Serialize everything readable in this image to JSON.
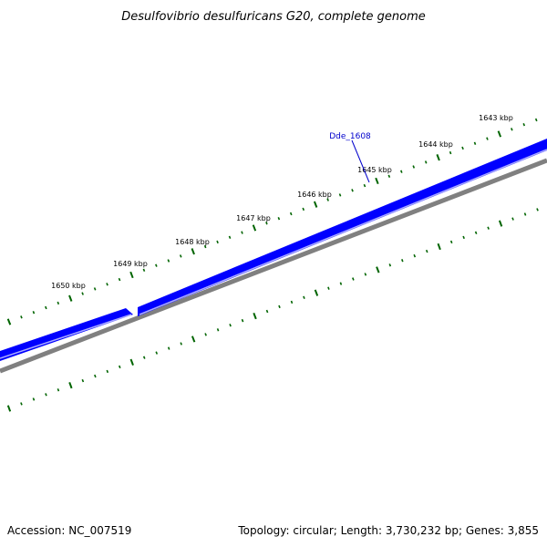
{
  "title": "Desulfovibrio desulfuricans G20, complete genome",
  "footer": {
    "accession": "Accession: NC_007519",
    "summary": "Topology: circular; Length: 3,730,232 bp; Genes: 3,855"
  },
  "colors": {
    "gene_fill": "#0000ff",
    "gene_highlight": "#aaaaff",
    "backbone": "#808080",
    "ticks": "#006400",
    "gene_label": "#0000cc"
  },
  "ruler": {
    "labels": [
      "1643 kbp",
      "1644 kbp",
      "1645 kbp",
      "1646 kbp",
      "1647 kbp",
      "1648 kbp",
      "1649 kbp",
      "1650 kbp"
    ]
  },
  "genes": [
    {
      "label": "Dde_1608",
      "strand": "reverse"
    }
  ]
}
